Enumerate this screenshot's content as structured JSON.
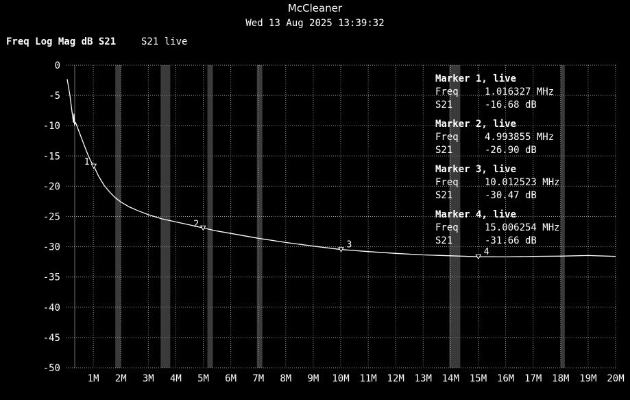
{
  "window": {
    "title": "McCleaner",
    "timestamp": "Wed 13 Aug 2025 13:39:32"
  },
  "trace": {
    "format": "Freq Log Mag dB S21",
    "status": "S21 live"
  },
  "markers": [
    {
      "label": "1",
      "title": "Marker 1, live",
      "freq_label": "Freq",
      "freq": "1.016327 MHz",
      "param_label": "S21",
      "value": "-16.68 dB",
      "freq_mhz": 1.016327,
      "db": -16.68
    },
    {
      "label": "2",
      "title": "Marker 2, live",
      "freq_label": "Freq",
      "freq": "4.993855 MHz",
      "param_label": "S21",
      "value": "-26.90 dB",
      "freq_mhz": 4.993855,
      "db": -26.9
    },
    {
      "label": "3",
      "title": "Marker 3, live",
      "freq_label": "Freq",
      "freq": "10.012523 MHz",
      "param_label": "S21",
      "value": "-30.47 dB",
      "freq_mhz": 10.012523,
      "db": -30.47
    },
    {
      "label": "4",
      "title": "Marker 4, live",
      "freq_label": "Freq",
      "freq": "15.006254 MHz",
      "param_label": "S21",
      "value": "-31.66 dB",
      "freq_mhz": 15.006254,
      "db": -31.66
    }
  ],
  "chart_data": {
    "type": "line",
    "title": "",
    "xlabel": "",
    "ylabel": "",
    "xlim": [
      0,
      20
    ],
    "ylim": [
      -50,
      0
    ],
    "grid": true,
    "x_ticks": [
      {
        "value": 1,
        "label": "1M"
      },
      {
        "value": 2,
        "label": "2M"
      },
      {
        "value": 3,
        "label": "3M"
      },
      {
        "value": 4,
        "label": "4M"
      },
      {
        "value": 5,
        "label": "5M"
      },
      {
        "value": 6,
        "label": "6M"
      },
      {
        "value": 7,
        "label": "7M"
      },
      {
        "value": 8,
        "label": "8M"
      },
      {
        "value": 9,
        "label": "9M"
      },
      {
        "value": 10,
        "label": "10M"
      },
      {
        "value": 11,
        "label": "11M"
      },
      {
        "value": 12,
        "label": "12M"
      },
      {
        "value": 13,
        "label": "13M"
      },
      {
        "value": 14,
        "label": "14M"
      },
      {
        "value": 15,
        "label": "15M"
      },
      {
        "value": 16,
        "label": "16M"
      },
      {
        "value": 17,
        "label": "17M"
      },
      {
        "value": 18,
        "label": "18M"
      },
      {
        "value": 19,
        "label": "19M"
      },
      {
        "value": 20,
        "label": "20M"
      }
    ],
    "y_ticks": [
      {
        "value": 0,
        "label": "0"
      },
      {
        "value": -5,
        "label": "-5"
      },
      {
        "value": -10,
        "label": "-10"
      },
      {
        "value": -15,
        "label": "-15"
      },
      {
        "value": -20,
        "label": "-20"
      },
      {
        "value": -25,
        "label": "-25"
      },
      {
        "value": -30,
        "label": "-30"
      },
      {
        "value": -35,
        "label": "-35"
      },
      {
        "value": -40,
        "label": "-40"
      },
      {
        "value": -45,
        "label": "-45"
      },
      {
        "value": -50,
        "label": "-50"
      }
    ],
    "shaded_bands": [
      [
        0.3,
        0.35
      ],
      [
        1.8,
        2.0
      ],
      [
        3.45,
        3.8
      ],
      [
        5.15,
        5.35
      ],
      [
        6.95,
        7.15
      ],
      [
        13.95,
        14.35
      ],
      [
        18.0,
        18.15
      ]
    ],
    "series": [
      {
        "color": "#ffffff",
        "x": [
          0.05,
          0.15,
          0.22,
          0.28,
          0.3,
          0.32,
          0.36,
          0.45,
          0.55,
          0.65,
          0.75,
          0.85,
          0.95,
          1.016327,
          1.2,
          1.4,
          1.6,
          1.8,
          2.0,
          2.3,
          2.6,
          3.0,
          3.5,
          4.0,
          4.5,
          4.993855,
          5.5,
          6.0,
          7.0,
          8.0,
          9.0,
          10.012523,
          11.0,
          12.0,
          13.0,
          14.0,
          15.006254,
          16.0,
          17.0,
          18.0,
          19.0,
          20.0
        ],
        "y": [
          -2.3,
          -5.0,
          -7.5,
          -9.5,
          -8.0,
          -9.8,
          -9.5,
          -10.6,
          -11.8,
          -13.0,
          -14.2,
          -15.3,
          -16.2,
          -16.68,
          -18.4,
          -19.9,
          -21.0,
          -21.9,
          -22.6,
          -23.4,
          -24.0,
          -24.7,
          -25.4,
          -25.9,
          -26.4,
          -26.9,
          -27.4,
          -27.8,
          -28.6,
          -29.3,
          -29.9,
          -30.47,
          -30.8,
          -31.1,
          -31.35,
          -31.5,
          -31.66,
          -31.68,
          -31.6,
          -31.55,
          -31.45,
          -31.6
        ]
      }
    ]
  }
}
